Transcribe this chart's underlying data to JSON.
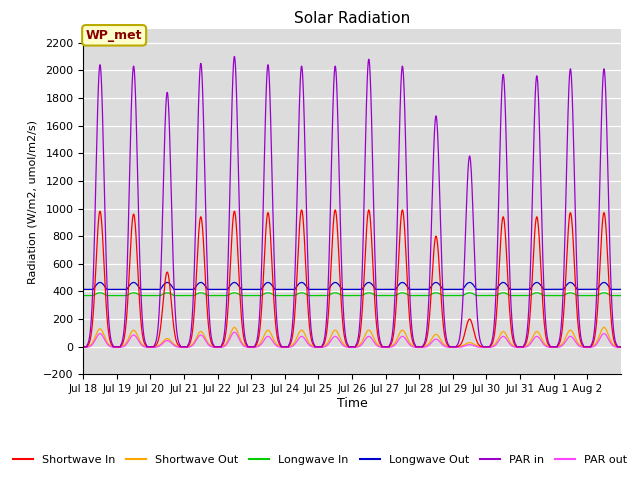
{
  "title": "Solar Radiation",
  "ylabel": "Radiation (W/m2, umol/m2/s)",
  "xlabel": "Time",
  "ylim": [
    -200,
    2300
  ],
  "yticks": [
    -200,
    0,
    200,
    400,
    600,
    800,
    1000,
    1200,
    1400,
    1600,
    1800,
    2000,
    2200
  ],
  "xtick_labels": [
    "Jul 18",
    "Jul 19",
    "Jul 20",
    "Jul 21",
    "Jul 22",
    "Jul 23",
    "Jul 24",
    "Jul 25",
    "Jul 26",
    "Jul 27",
    "Jul 28",
    "Jul 29",
    "Jul 30",
    "Jul 31",
    "Aug 1",
    "Aug 2"
  ],
  "station_label": "WP_met",
  "background_color": "#dcdcdc",
  "n_days": 16,
  "points_per_day": 288,
  "sw_in_peaks": [
    980,
    960,
    540,
    940,
    980,
    970,
    990,
    990,
    990,
    990,
    800,
    200,
    940,
    940,
    970,
    970
  ],
  "sw_out_peaks": [
    130,
    120,
    60,
    110,
    140,
    120,
    120,
    120,
    120,
    120,
    90,
    30,
    110,
    110,
    120,
    140
  ],
  "par_in_peaks": [
    2040,
    2030,
    1840,
    2050,
    2100,
    2040,
    2030,
    2030,
    2080,
    2030,
    1670,
    1380,
    1970,
    1960,
    2010,
    2010
  ],
  "par_out_peaks": [
    100,
    90,
    50,
    90,
    110,
    80,
    80,
    80,
    80,
    80,
    60,
    20,
    80,
    80,
    80,
    100
  ],
  "lw_in_base": 370,
  "lw_out_base": 415,
  "colors": {
    "sw_in": "#ff0000",
    "sw_out": "#ffa500",
    "lw_in": "#00cc00",
    "lw_out": "#0000cc",
    "par_in": "#9900cc",
    "par_out": "#ff44ff"
  },
  "legend_labels": [
    "Shortwave In",
    "Shortwave Out",
    "Longwave In",
    "Longwave Out",
    "PAR in",
    "PAR out"
  ]
}
